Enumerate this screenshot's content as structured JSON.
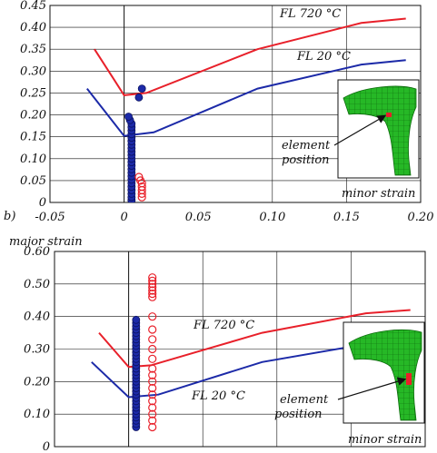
{
  "chart_data": [
    {
      "type": "line",
      "panel_label": "",
      "xlabel": "minor strain",
      "ylabel": "",
      "xlim": [
        -0.05,
        0.2
      ],
      "ylim": [
        0,
        0.45
      ],
      "x_ticks": [
        "-0.05",
        "0",
        "0.05",
        "0.10",
        "0.15",
        "0.20"
      ],
      "y_ticks": [
        "0",
        "0.05",
        "0.10",
        "0.15",
        "0.20",
        "0.25",
        "0.30",
        "0.35",
        "0.40",
        "0.45"
      ],
      "grid": true,
      "series": [
        {
          "name": "FL 720 °C",
          "color": "#e8202a",
          "x": [
            -0.02,
            0.0,
            0.015,
            0.09,
            0.16,
            0.19
          ],
          "y": [
            0.35,
            0.245,
            0.25,
            0.35,
            0.41,
            0.42
          ]
        },
        {
          "name": "FL 20 °C",
          "color": "#1c2aa8",
          "x": [
            -0.025,
            0.0,
            0.02,
            0.09,
            0.16,
            0.19
          ],
          "y": [
            0.26,
            0.152,
            0.16,
            0.26,
            0.315,
            0.325
          ]
        }
      ],
      "scatter": [
        {
          "color": "#1c2aa8",
          "filled": true,
          "x": [
            0.005,
            0.005,
            0.005,
            0.005,
            0.005,
            0.005,
            0.005,
            0.005,
            0.005,
            0.005,
            0.005,
            0.005,
            0.005,
            0.005,
            0.005,
            0.005,
            0.005,
            0.005,
            0.005,
            0.005,
            0.005,
            0.005,
            0.005,
            0.004,
            0.003,
            0.01,
            0.012
          ],
          "y": [
            0.005,
            0.012,
            0.02,
            0.028,
            0.036,
            0.044,
            0.052,
            0.06,
            0.068,
            0.076,
            0.084,
            0.092,
            0.1,
            0.108,
            0.116,
            0.124,
            0.132,
            0.14,
            0.148,
            0.156,
            0.164,
            0.172,
            0.18,
            0.188,
            0.196,
            0.24,
            0.26
          ]
        },
        {
          "color": "#e8202a",
          "filled": false,
          "x": [
            0.012,
            0.012,
            0.012,
            0.012,
            0.012,
            0.011,
            0.01
          ],
          "y": [
            0.012,
            0.02,
            0.028,
            0.036,
            0.044,
            0.05,
            0.058
          ]
        }
      ],
      "inset_label": "element\nposition",
      "inset_label_lines": [
        "element",
        "position"
      ]
    },
    {
      "type": "line",
      "panel_label": "b)",
      "xlabel": "minor strain",
      "ylabel": "major strain",
      "xlim": [
        -0.05,
        0.2
      ],
      "ylim": [
        0,
        0.6
      ],
      "x_ticks": [],
      "y_ticks": [
        "0",
        "0.10",
        "0.20",
        "0.30",
        "0.40",
        "0.50",
        "0.60"
      ],
      "grid": true,
      "series": [
        {
          "name": "FL 720 °C",
          "color": "#e8202a",
          "x": [
            -0.02,
            0.0,
            0.015,
            0.09,
            0.16,
            0.19
          ],
          "y": [
            0.35,
            0.245,
            0.25,
            0.35,
            0.41,
            0.42
          ]
        },
        {
          "name": "FL 20 °C",
          "color": "#1c2aa8",
          "x": [
            -0.025,
            0.0,
            0.02,
            0.09,
            0.16,
            0.19
          ],
          "y": [
            0.26,
            0.152,
            0.16,
            0.26,
            0.315,
            0.325
          ]
        }
      ],
      "scatter": [
        {
          "color": "#1c2aa8",
          "filled": true,
          "x": [
            0.005,
            0.005,
            0.005,
            0.005,
            0.005,
            0.005,
            0.005,
            0.005,
            0.005,
            0.005,
            0.005,
            0.005,
            0.005,
            0.005,
            0.005,
            0.005,
            0.005,
            0.005,
            0.005,
            0.005,
            0.005,
            0.005,
            0.005,
            0.005,
            0.005,
            0.005,
            0.005,
            0.005,
            0.005,
            0.005,
            0.005,
            0.005,
            0.005,
            0.005
          ],
          "y": [
            0.06,
            0.07,
            0.08,
            0.09,
            0.1,
            0.11,
            0.12,
            0.13,
            0.14,
            0.15,
            0.16,
            0.17,
            0.18,
            0.19,
            0.2,
            0.21,
            0.22,
            0.23,
            0.24,
            0.25,
            0.26,
            0.27,
            0.28,
            0.29,
            0.3,
            0.31,
            0.32,
            0.33,
            0.34,
            0.35,
            0.36,
            0.37,
            0.38,
            0.39
          ]
        },
        {
          "color": "#e8202a",
          "filled": false,
          "x": [
            0.016,
            0.016,
            0.016,
            0.016,
            0.016,
            0.016,
            0.016,
            0.016,
            0.016,
            0.016,
            0.016,
            0.016,
            0.016,
            0.016,
            0.016,
            0.016,
            0.016,
            0.016,
            0.016,
            0.016,
            0.016,
            0.016
          ],
          "y": [
            0.06,
            0.08,
            0.1,
            0.12,
            0.14,
            0.16,
            0.18,
            0.2,
            0.22,
            0.24,
            0.27,
            0.3,
            0.33,
            0.36,
            0.4,
            0.46,
            0.47,
            0.48,
            0.49,
            0.5,
            0.51,
            0.52
          ]
        }
      ],
      "inset_label_lines": [
        "element",
        "position"
      ]
    }
  ]
}
